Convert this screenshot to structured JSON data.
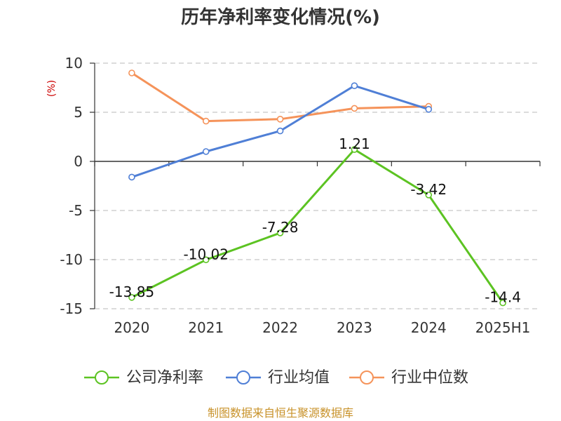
{
  "chart_data": {
    "type": "line",
    "title": "历年净利率变化情况(%)",
    "ylabel": "(%)",
    "categories": [
      "2020",
      "2021",
      "2022",
      "2023",
      "2024",
      "2025H1"
    ],
    "y_ticks": [
      "10",
      "5",
      "0",
      "-5",
      "-10",
      "-15"
    ],
    "ylim": [
      -15,
      10
    ],
    "grid": true,
    "legend_position": "bottom",
    "series": [
      {
        "name": "公司净利率",
        "color": "#5cc322",
        "values": [
          -13.85,
          -10.02,
          -7.28,
          1.21,
          -3.42,
          -14.4
        ],
        "labels": [
          "-13.85",
          "-10.02",
          "-7.28",
          "1.21",
          "-3.42",
          "-14.4"
        ]
      },
      {
        "name": "行业均值",
        "color": "#4f7fd6",
        "values": [
          -1.6,
          1.0,
          3.1,
          7.7,
          5.3,
          null
        ]
      },
      {
        "name": "行业中位数",
        "color": "#f5935a",
        "values": [
          9.0,
          4.1,
          4.3,
          5.4,
          5.6,
          null
        ]
      }
    ]
  },
  "source": "制图数据来自恒生聚源数据库"
}
